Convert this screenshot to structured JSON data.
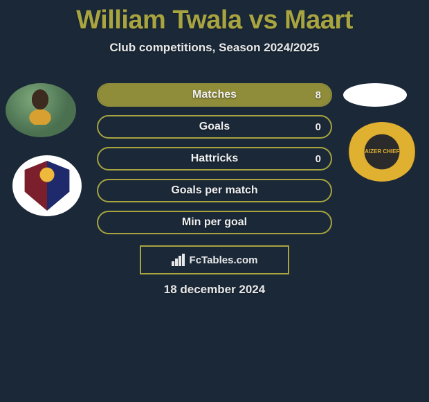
{
  "title": "William Twala vs Maart",
  "subtitle": "Club competitions, Season 2024/2025",
  "date": "18 december 2024",
  "brand": "FcTables.com",
  "colors": {
    "accent": "#a8a440",
    "fill_matches": "#8f8c3a",
    "text": "#e8e8e8",
    "bg": "#1a2838"
  },
  "stats": [
    {
      "label": "Matches",
      "value_right": "8",
      "fill_pct": 100,
      "fill_color": "#8f8c3a",
      "border_color": "#8f8c3a"
    },
    {
      "label": "Goals",
      "value_right": "0",
      "fill_pct": 0,
      "fill_color": "#8f8c3a",
      "border_color": "#a8a440"
    },
    {
      "label": "Hattricks",
      "value_right": "0",
      "fill_pct": 0,
      "fill_color": "#8f8c3a",
      "border_color": "#a8a440"
    },
    {
      "label": "Goals per match",
      "value_right": "",
      "fill_pct": 0,
      "fill_color": "#8f8c3a",
      "border_color": "#a8a440"
    },
    {
      "label": "Min per goal",
      "value_right": "",
      "fill_pct": 0,
      "fill_color": "#8f8c3a",
      "border_color": "#a8a440"
    }
  ],
  "left_badges": {
    "player_alt": "William Twala photo",
    "club_alt": "Chippa United FC crest"
  },
  "right_badges": {
    "player_alt": "Maart photo placeholder",
    "club_alt": "Kaizer Chiefs crest",
    "club_text": "KAIZER CHIEFS"
  }
}
